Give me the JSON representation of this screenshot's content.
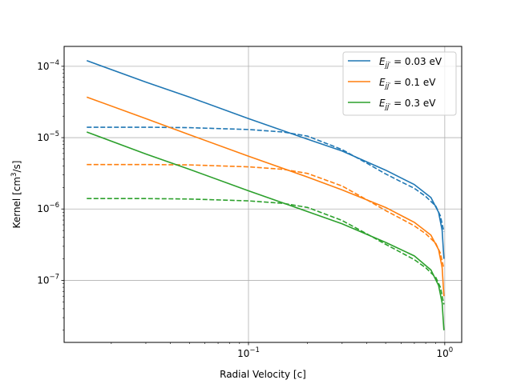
{
  "chart_data": {
    "type": "line",
    "title": "",
    "xlabel": "Radial Velocity [c]",
    "ylabel_main": "Kernel [cm",
    "ylabel_sup": "3",
    "ylabel_end": "/s]",
    "xscale": "log",
    "yscale": "log",
    "xlim": [
      0.0115,
      1.22
    ],
    "ylim": [
      1.35e-08,
      0.00019
    ],
    "grid": true,
    "legend_position": "top-right",
    "x_major_ticks": [
      {
        "value": 0.1,
        "base": "10",
        "exp": "−1"
      },
      {
        "value": 1,
        "base": "10",
        "exp": "0"
      }
    ],
    "y_major_ticks": [
      {
        "value": 1e-07,
        "base": "10",
        "exp": "−7"
      },
      {
        "value": 1e-06,
        "base": "10",
        "exp": "−6"
      },
      {
        "value": 1e-05,
        "base": "10",
        "exp": "−5"
      },
      {
        "value": 0.0001,
        "base": "10",
        "exp": "−4"
      }
    ],
    "series": [
      {
        "name_main": "E",
        "name_sub": "jj′",
        "name_value": " = 0.03 eV",
        "color": "#1f77b4",
        "solid": {
          "x": [
            0.015,
            0.03,
            0.05,
            0.1,
            0.2,
            0.3,
            0.5,
            0.7,
            0.85,
            0.93,
            0.97,
            0.99
          ],
          "y": [
            0.00012,
            6e-05,
            3.7e-05,
            1.85e-05,
            9.5e-06,
            6.5e-06,
            3.5e-06,
            2.2e-06,
            1.45e-06,
            9e-07,
            5e-07,
            2e-07
          ]
        },
        "dashed": {
          "x": [
            0.015,
            0.03,
            0.05,
            0.1,
            0.15,
            0.2,
            0.3,
            0.4,
            0.5,
            0.6,
            0.7,
            0.8,
            0.9,
            0.95,
            0.99
          ],
          "y": [
            1.4e-05,
            1.4e-05,
            1.38e-05,
            1.3e-05,
            1.2e-05,
            1.05e-05,
            6.8e-06,
            4.4e-06,
            3.1e-06,
            2.4e-06,
            1.95e-06,
            1.5e-06,
            1.1e-06,
            8e-07,
            4.8e-07
          ]
        }
      },
      {
        "name_main": "E",
        "name_sub": "jj′",
        "name_value": " = 0.1 eV",
        "color": "#ff7f0e",
        "solid": {
          "x": [
            0.015,
            0.03,
            0.05,
            0.1,
            0.2,
            0.3,
            0.5,
            0.7,
            0.85,
            0.93,
            0.97,
            0.99
          ],
          "y": [
            3.7e-05,
            1.85e-05,
            1.1e-05,
            5.5e-06,
            2.8e-06,
            1.85e-06,
            1.05e-06,
            6.5e-07,
            4.3e-07,
            2.7e-07,
            1.5e-07,
            6e-08
          ]
        },
        "dashed": {
          "x": [
            0.015,
            0.03,
            0.05,
            0.1,
            0.15,
            0.2,
            0.3,
            0.4,
            0.5,
            0.6,
            0.7,
            0.8,
            0.9,
            0.95,
            0.99
          ],
          "y": [
            4.2e-06,
            4.2e-06,
            4.15e-06,
            3.9e-06,
            3.6e-06,
            3.15e-06,
            2.1e-06,
            1.35e-06,
            9.5e-07,
            7.3e-07,
            5.8e-07,
            4.5e-07,
            3.3e-07,
            2.4e-07,
            1.45e-07
          ]
        }
      },
      {
        "name_main": "E",
        "name_sub": "jj′",
        "name_value": " = 0.3 eV",
        "color": "#2ca02c",
        "solid": {
          "x": [
            0.015,
            0.03,
            0.05,
            0.1,
            0.2,
            0.3,
            0.5,
            0.7,
            0.85,
            0.93,
            0.97,
            0.99
          ],
          "y": [
            1.2e-05,
            5.9e-06,
            3.6e-06,
            1.8e-06,
            9.2e-07,
            6.2e-07,
            3.4e-07,
            2.2e-07,
            1.4e-07,
            8.5e-08,
            4.8e-08,
            2e-08
          ]
        },
        "dashed": {
          "x": [
            0.015,
            0.03,
            0.05,
            0.1,
            0.15,
            0.2,
            0.3,
            0.4,
            0.5,
            0.6,
            0.7,
            0.8,
            0.9,
            0.95,
            0.99
          ],
          "y": [
            1.4e-06,
            1.4e-06,
            1.38e-06,
            1.3e-06,
            1.2e-06,
            1.05e-06,
            6.9e-07,
            4.5e-07,
            3.2e-07,
            2.45e-07,
            1.95e-07,
            1.5e-07,
            1.1e-07,
            8e-08,
            4.6e-08
          ]
        }
      }
    ]
  }
}
